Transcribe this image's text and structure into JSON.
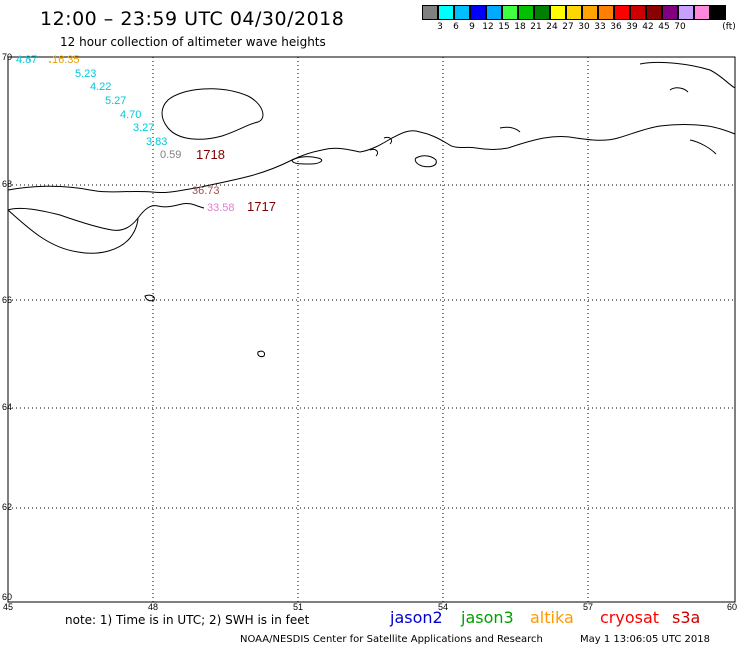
{
  "header": {
    "title": "12:00 – 23:59 UTC 04/30/2018",
    "subtitle": "12 hour collection of altimeter wave heights"
  },
  "colorbar": {
    "unit": "(ft)",
    "colors": [
      "#808080",
      "#00ffff",
      "#00bfff",
      "#0000ff",
      "#00aaff",
      "#40ff40",
      "#00c000",
      "#008000",
      "#ffff00",
      "#ffd700",
      "#ffa500",
      "#ff8000",
      "#ff0000",
      "#cc0000",
      "#8b0000",
      "#800080",
      "#c8a0ff",
      "#ff88dd",
      "#000000"
    ],
    "labels": [
      "3",
      "6",
      "9",
      "12",
      "15",
      "18",
      "21",
      "24",
      "27",
      "30",
      "33",
      "36",
      "39",
      "42",
      "45",
      "70"
    ]
  },
  "axes": {
    "x_ticks": [
      "45",
      "48",
      "51",
      "54",
      "57",
      "60"
    ],
    "y_ticks": [
      "70",
      "68",
      "66",
      "64",
      "62",
      "60"
    ]
  },
  "annotations": {
    "pt1": "4.87",
    "pt2": "16.35",
    "pt3": "5.23",
    "pt4": "4.22",
    "pt5": "5.27",
    "pt6": "4.70",
    "pt7": "3.27",
    "pt8": "3.83",
    "pt9": "0.59",
    "pt10": "1718",
    "pt11": "36.73",
    "pt12": "33.58",
    "pt13": "1717"
  },
  "annotation_colors": {
    "cyan": "#00c8d8",
    "orange": "#e8a000",
    "gray": "#808080",
    "darkred": "#800000",
    "pink": "#e080d0"
  },
  "footer": {
    "note": "note: 1) Time is in UTC; 2) SWH is in feet",
    "legend": [
      {
        "label": "jason2",
        "color": "#0000cc"
      },
      {
        "label": "jason3",
        "color": "#00a000"
      },
      {
        "label": "altika",
        "color": "#ff9900"
      },
      {
        "label": "cryosat",
        "color": "#ff0000"
      },
      {
        "label": "s3a",
        "color": "#cc0000"
      }
    ],
    "credit": "NOAA/NESDIS Center for Satellite Applications and Research",
    "timestamp": "May  1 13:06:05 UTC 2018"
  }
}
